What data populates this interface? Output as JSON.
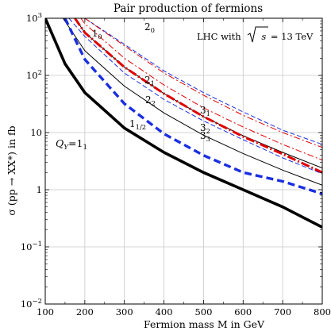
{
  "chart_data": {
    "type": "line",
    "title": "Pair production of fermions",
    "xlabel": "Fermion mass M in GeV",
    "ylabel": "σ (pp → XX*) in fb",
    "xlim": [
      100,
      800
    ],
    "ylim": [
      0.01,
      1000
    ],
    "yscale": "log",
    "grid": true,
    "x_ticks": [
      100,
      200,
      300,
      400,
      500,
      600,
      700,
      800
    ],
    "x_tick_labels": [
      "100",
      "200",
      "300",
      "400",
      "500",
      "600",
      "700",
      "800"
    ],
    "y_ticks": [
      0.01,
      0.1,
      1,
      10,
      100,
      1000
    ],
    "y_tick_labels": [
      {
        "base": "10",
        "exp": "−2"
      },
      {
        "base": "10",
        "exp": "−1"
      },
      {
        "base": "1",
        "exp": ""
      },
      {
        "base": "10",
        "exp": ""
      },
      {
        "base": "10",
        "exp": "2"
      },
      {
        "base": "10",
        "exp": "3"
      }
    ],
    "annotation_text": {
      "prefix": "LHC with ",
      "radicand": "s",
      "suffix": " = 13 TeV"
    },
    "series": [
      {
        "label": {
          "main": "Q",
          "sub1": "Y",
          "mid": "=1",
          "sub2": "1"
        },
        "color": "#000000",
        "style": "solid-thick",
        "x": [
          100,
          150,
          200,
          300,
          400,
          500,
          600,
          700,
          800
        ],
        "y": [
          1000,
          160,
          50,
          12,
          4.5,
          2.0,
          1.0,
          0.5,
          0.22
        ]
      },
      {
        "label": {
          "main": "1",
          "sub": "1/2"
        },
        "color": "#000000",
        "style": "solid-thin",
        "x": [
          145,
          200,
          300,
          400,
          500,
          600,
          700,
          800
        ],
        "y": [
          1000,
          270,
          65,
          22,
          9.0,
          4.3,
          2.2,
          1.2
        ]
      },
      {
        "label": {
          "main": "1",
          "sub": "0"
        },
        "color": "#000000",
        "style": "solid-thin",
        "x": [
          175,
          200,
          300,
          400,
          500,
          600,
          700,
          800
        ],
        "y": [
          1000,
          560,
          140,
          48,
          19,
          8.8,
          4.5,
          2.4
        ]
      },
      {
        "label": {
          "main": "2",
          "sub": "2"
        },
        "color": "#1a2ee0",
        "style": "dashed-thick",
        "x": [
          150,
          200,
          300,
          400,
          500,
          600,
          700,
          800
        ],
        "y": [
          1000,
          190,
          32,
          9.5,
          4.0,
          2.0,
          1.4,
          0.85
        ]
      },
      {
        "label": {
          "main": "2",
          "sub": "1"
        },
        "color": "#1a2ee0",
        "style": "dashed-thin",
        "x": [
          160,
          200,
          300,
          400,
          500,
          600,
          700,
          800
        ],
        "y": [
          1000,
          480,
          110,
          38,
          16,
          7.5,
          3.6,
          1.9
        ]
      },
      {
        "label": {
          "main": "2",
          "sub": "0"
        },
        "color": "#1a2ee0",
        "style": "dashed-thin",
        "x": [
          200,
          300,
          400,
          500,
          600,
          700,
          800
        ],
        "y": [
          1000,
          350,
          120,
          50,
          23,
          11,
          6.2
        ]
      },
      {
        "label": {
          "main": "3",
          "sub": "3"
        },
        "color": "#e00000",
        "style": "dashdot-thick",
        "x": [
          175,
          200,
          300,
          400,
          500,
          600,
          700,
          800
        ],
        "y": [
          1000,
          560,
          140,
          48,
          19,
          8.5,
          4.2,
          2.0
        ]
      },
      {
        "label": {
          "main": "3",
          "sub": "2"
        },
        "color": "#e00000",
        "style": "dashdot-thin",
        "x": [
          190,
          200,
          300,
          400,
          500,
          600,
          700,
          800
        ],
        "y": [
          1000,
          800,
          200,
          68,
          27,
          12.5,
          6.2,
          3.3
        ]
      },
      {
        "label": {
          "main": "3",
          "sub": "1"
        },
        "color": "#e00000",
        "style": "dashdot-thin",
        "x": [
          200,
          300,
          400,
          500,
          600,
          700,
          800
        ],
        "y": [
          1000,
          330,
          110,
          45,
          20,
          10,
          5.5
        ]
      }
    ]
  }
}
